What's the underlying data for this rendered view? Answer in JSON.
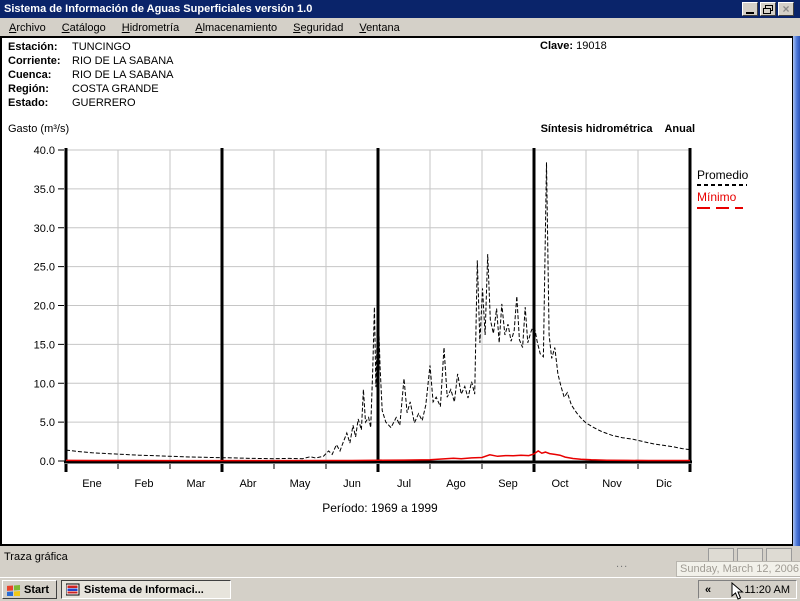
{
  "window": {
    "title": "Sistema de Información de Aguas Superficiales  versión 1.0",
    "titlebar_color": "#0a246a",
    "icons": [
      "minimize-icon",
      "restore-icon",
      "close-icon"
    ]
  },
  "menu_items": [
    "Archivo",
    "Catálogo",
    "Hidrometría",
    "Almacenamiento",
    "Seguridad",
    "Ventana"
  ],
  "station": {
    "rows": [
      {
        "label": "Estación:",
        "value": "TUNCINGO"
      },
      {
        "label": "Corriente:",
        "value": "RIO DE LA SABANA"
      },
      {
        "label": "Cuenca:",
        "value": "RIO DE LA SABANA"
      },
      {
        "label": "Región:",
        "value": "COSTA GRANDE"
      },
      {
        "label": "Estado:",
        "value": "GUERRERO"
      }
    ],
    "clave": {
      "label": "Clave:",
      "value": "19018"
    }
  },
  "chart_header": {
    "ylabel": "Gasto (m³/s)",
    "title": "Síntesis hidrométrica",
    "mode": "Anual"
  },
  "period_label": "Período: 1969 a 1999",
  "chart_data": {
    "type": "line",
    "title": "Síntesis hidrométrica Anual",
    "ylabel": "Gasto (m³/s)",
    "xlabel": "Período: 1969 a 1999",
    "categories": [
      "Ene",
      "Feb",
      "Mar",
      "Abr",
      "May",
      "Jun",
      "Jul",
      "Ago",
      "Sep",
      "Oct",
      "Nov",
      "Dic"
    ],
    "ylim": [
      0,
      40
    ],
    "ytick_step": 5,
    "grid": true,
    "grid_color": "#c6c6c6",
    "quarter_dividers": [
      3,
      6,
      9
    ],
    "legend": [
      {
        "name": "Promedio",
        "color": "#000000",
        "style": "dashed"
      },
      {
        "name": "Mínimo",
        "color": "#e80000",
        "style": "solid"
      }
    ],
    "series": [
      {
        "name": "Promedio",
        "color": "#000000",
        "dash": "4 2",
        "width": 1,
        "points": [
          [
            0,
            1.4
          ],
          [
            0.2,
            1.25
          ],
          [
            0.5,
            1.05
          ],
          [
            0.8,
            0.95
          ],
          [
            1.1,
            0.85
          ],
          [
            1.4,
            0.75
          ],
          [
            1.7,
            0.68
          ],
          [
            2.0,
            0.6
          ],
          [
            2.4,
            0.52
          ],
          [
            2.8,
            0.45
          ],
          [
            3.2,
            0.4
          ],
          [
            3.6,
            0.34
          ],
          [
            4.0,
            0.3
          ],
          [
            4.3,
            0.34
          ],
          [
            4.55,
            0.3
          ],
          [
            4.7,
            0.55
          ],
          [
            4.8,
            0.38
          ],
          [
            4.95,
            0.6
          ],
          [
            5.05,
            1.3
          ],
          [
            5.12,
            0.85
          ],
          [
            5.2,
            2.1
          ],
          [
            5.27,
            1.3
          ],
          [
            5.33,
            2.4
          ],
          [
            5.4,
            3.6
          ],
          [
            5.46,
            2.3
          ],
          [
            5.52,
            4.6
          ],
          [
            5.57,
            3.1
          ],
          [
            5.62,
            5.4
          ],
          [
            5.68,
            4.0
          ],
          [
            5.72,
            9.2
          ],
          [
            5.76,
            5.0
          ],
          [
            5.82,
            5.6
          ],
          [
            5.86,
            4.3
          ],
          [
            5.9,
            12.0
          ],
          [
            5.93,
            19.8
          ],
          [
            5.96,
            9.5
          ],
          [
            6.0,
            20.4
          ],
          [
            6.04,
            12.0
          ],
          [
            6.08,
            6.5
          ],
          [
            6.15,
            5.0
          ],
          [
            6.25,
            4.3
          ],
          [
            6.35,
            5.6
          ],
          [
            6.42,
            4.6
          ],
          [
            6.5,
            10.6
          ],
          [
            6.56,
            6.2
          ],
          [
            6.62,
            7.6
          ],
          [
            6.7,
            4.9
          ],
          [
            6.78,
            6.1
          ],
          [
            6.85,
            5.2
          ],
          [
            6.92,
            7.2
          ],
          [
            7.0,
            12.3
          ],
          [
            7.06,
            7.6
          ],
          [
            7.12,
            8.2
          ],
          [
            7.2,
            7.0
          ],
          [
            7.27,
            14.6
          ],
          [
            7.33,
            8.2
          ],
          [
            7.4,
            9.2
          ],
          [
            7.47,
            7.6
          ],
          [
            7.53,
            11.2
          ],
          [
            7.6,
            8.6
          ],
          [
            7.67,
            9.6
          ],
          [
            7.73,
            8.1
          ],
          [
            7.8,
            10.2
          ],
          [
            7.86,
            8.6
          ],
          [
            7.91,
            25.8
          ],
          [
            7.96,
            15.2
          ],
          [
            8.01,
            22.2
          ],
          [
            8.06,
            16.2
          ],
          [
            8.11,
            26.6
          ],
          [
            8.16,
            18.2
          ],
          [
            8.22,
            16.4
          ],
          [
            8.28,
            19.6
          ],
          [
            8.33,
            15.2
          ],
          [
            8.38,
            20.2
          ],
          [
            8.44,
            16.2
          ],
          [
            8.5,
            17.6
          ],
          [
            8.56,
            15.4
          ],
          [
            8.62,
            16.8
          ],
          [
            8.67,
            21.2
          ],
          [
            8.72,
            15.6
          ],
          [
            8.78,
            14.6
          ],
          [
            8.83,
            19.8
          ],
          [
            8.88,
            15.2
          ],
          [
            8.94,
            16.6
          ],
          [
            9.0,
            17.6
          ],
          [
            9.06,
            15.4
          ],
          [
            9.12,
            13.8
          ],
          [
            9.18,
            13.4
          ],
          [
            9.24,
            38.4
          ],
          [
            9.29,
            16.2
          ],
          [
            9.34,
            13.2
          ],
          [
            9.4,
            14.6
          ],
          [
            9.46,
            11.2
          ],
          [
            9.52,
            9.6
          ],
          [
            9.58,
            8.2
          ],
          [
            9.64,
            8.8
          ],
          [
            9.72,
            7.2
          ],
          [
            9.82,
            6.2
          ],
          [
            9.92,
            5.4
          ],
          [
            10.0,
            4.9
          ],
          [
            10.15,
            4.3
          ],
          [
            10.3,
            3.8
          ],
          [
            10.5,
            3.3
          ],
          [
            10.7,
            3.0
          ],
          [
            10.9,
            2.8
          ],
          [
            11.1,
            2.5
          ],
          [
            11.3,
            2.2
          ],
          [
            11.5,
            2.0
          ],
          [
            11.7,
            1.8
          ],
          [
            11.85,
            1.6
          ],
          [
            12,
            1.45
          ]
        ]
      },
      {
        "name": "Mínimo",
        "color": "#e80000",
        "dash": "",
        "width": 1.5,
        "points": [
          [
            0,
            0.08
          ],
          [
            0.5,
            0.07
          ],
          [
            1,
            0.06
          ],
          [
            1.5,
            0.06
          ],
          [
            2,
            0.05
          ],
          [
            3,
            0.05
          ],
          [
            4,
            0.05
          ],
          [
            5,
            0.06
          ],
          [
            5.5,
            0.07
          ],
          [
            6,
            0.1
          ],
          [
            6.5,
            0.12
          ],
          [
            7,
            0.15
          ],
          [
            7.3,
            0.3
          ],
          [
            7.45,
            0.35
          ],
          [
            7.6,
            0.28
          ],
          [
            7.8,
            0.4
          ],
          [
            8.0,
            0.45
          ],
          [
            8.15,
            0.8
          ],
          [
            8.3,
            0.6
          ],
          [
            8.45,
            0.7
          ],
          [
            8.6,
            0.68
          ],
          [
            8.75,
            0.75
          ],
          [
            8.9,
            0.7
          ],
          [
            9.0,
            0.9
          ],
          [
            9.08,
            1.3
          ],
          [
            9.15,
            1.0
          ],
          [
            9.22,
            1.15
          ],
          [
            9.3,
            0.95
          ],
          [
            9.4,
            0.85
          ],
          [
            9.5,
            0.75
          ],
          [
            9.6,
            0.5
          ],
          [
            9.75,
            0.32
          ],
          [
            9.9,
            0.22
          ],
          [
            10.1,
            0.15
          ],
          [
            10.4,
            0.1
          ],
          [
            10.8,
            0.08
          ],
          [
            11.2,
            0.06
          ],
          [
            11.6,
            0.06
          ],
          [
            12,
            0.06
          ]
        ]
      }
    ]
  },
  "statusbar": {
    "text": "Traza gráfica",
    "overflow_dots": "..."
  },
  "tray_tooltip": "Sunday, March 12, 2006",
  "taskbar": {
    "start_label": "Start",
    "task_label": "Sistema de Informaci...",
    "tray_collapse": "«",
    "clock": "11:20 AM",
    "icons": [
      "windows-flag-icon",
      "app-icon",
      "mouse-cursor"
    ]
  }
}
